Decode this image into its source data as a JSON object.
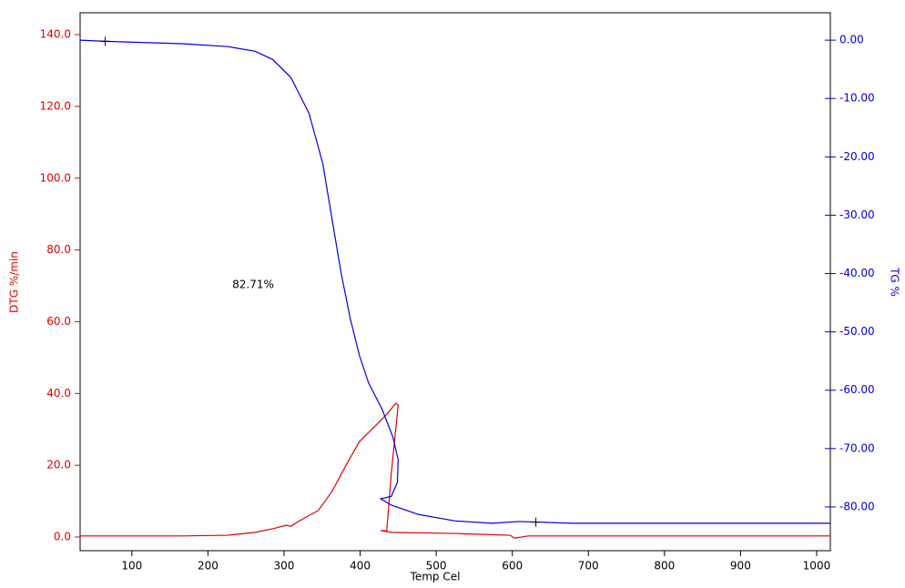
{
  "chart_data": {
    "type": "line",
    "x_label": "Temp Cel",
    "y_label": "DTG %/min",
    "y2_label": "TG %",
    "annotation": "82.71%",
    "xlim": [
      32,
      1018
    ],
    "xticks": [
      100,
      200,
      300,
      400,
      500,
      600,
      700,
      800,
      900,
      1000
    ],
    "ylim": [
      -3.8,
      146.1
    ],
    "yticks": [
      {
        "value": 0,
        "label": "0.0"
      },
      {
        "value": 20,
        "label": "20.0"
      },
      {
        "value": 40,
        "label": "40.0"
      },
      {
        "value": 60,
        "label": "60.0"
      },
      {
        "value": 80,
        "label": "80.0"
      },
      {
        "value": 100,
        "label": "100.0"
      },
      {
        "value": 120,
        "label": "120.0"
      },
      {
        "value": 140,
        "label": "140.0"
      }
    ],
    "y2lim": [
      -87.5,
      4.7
    ],
    "y2ticks": [
      {
        "value": 0,
        "label": "0.00"
      },
      {
        "value": -10,
        "label": "-10.00"
      },
      {
        "value": -20,
        "label": "-20.00"
      },
      {
        "value": -30,
        "label": "-30.00"
      },
      {
        "value": -40,
        "label": "-40.00"
      },
      {
        "value": -50,
        "label": "-50.00"
      },
      {
        "value": -60,
        "label": "-60.00"
      },
      {
        "value": -70,
        "label": "-70.00"
      },
      {
        "value": -80,
        "label": "-80.00"
      }
    ],
    "y_color": "#e00000",
    "y2_color": "#0000e0",
    "series": [
      {
        "color": "#e00000",
        "x": [
          32,
          46,
          166,
          226,
          262,
          285,
          303,
          309,
          321,
          345,
          363,
          381,
          399,
          417,
          435,
          447,
          450,
          441,
          435,
          427,
          441,
          525,
          597,
          603,
          621,
          764,
          1018
        ],
        "values": [
          0.3,
          0.3,
          0.3,
          0.5,
          1.3,
          2.3,
          3.3,
          3.0,
          4.6,
          7.4,
          12.7,
          19.8,
          26.6,
          30.4,
          34.2,
          37.3,
          36.8,
          17.8,
          1.8,
          1.8,
          1.3,
          1.0,
          0.5,
          -0.3,
          0.3,
          0.3,
          0.3
        ]
      },
      {
        "color": "#0000e0",
        "axis": "y2",
        "x": [
          32,
          65,
          166,
          226,
          262,
          285,
          309,
          333,
          351,
          363,
          375,
          387,
          399,
          411,
          429,
          443,
          450,
          449,
          441,
          427,
          441,
          477,
          525,
          573,
          609,
          680,
          1018
        ],
        "values": [
          0,
          -0.2,
          -0.6,
          -1.1,
          -1.9,
          -3.3,
          -6.4,
          -12.6,
          -21.2,
          -30.6,
          -39.9,
          -47.7,
          -54.0,
          -58.7,
          -63.3,
          -68.0,
          -71.9,
          -75.8,
          -78.2,
          -78.6,
          -79.7,
          -81.3,
          -82.4,
          -82.8,
          -82.5,
          -82.8,
          -82.8
        ]
      }
    ],
    "cursor_points": {
      "axis": "y2",
      "color": "#000000",
      "x": [
        65,
        631
      ],
      "values": [
        -0.2,
        -82.6
      ]
    }
  }
}
